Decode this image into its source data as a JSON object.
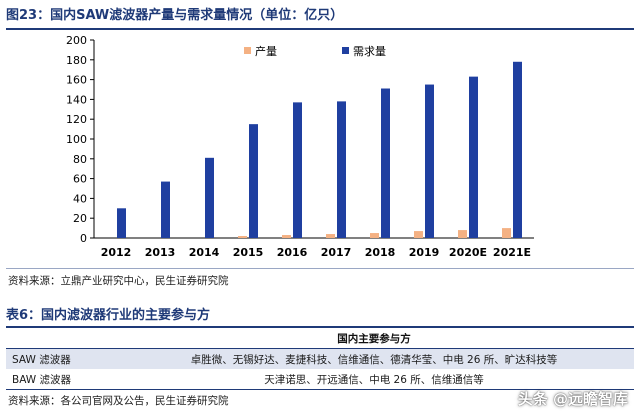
{
  "figure": {
    "title": "图23：国内SAW滤波器产量与需求量情况（单位：亿只）",
    "source": "资料来源：立鼎产业研究中心，民生证券研究院"
  },
  "chart_data": {
    "type": "bar",
    "categories": [
      "2012",
      "2013",
      "2014",
      "2015",
      "2016",
      "2017",
      "2018",
      "2019",
      "2020E",
      "2021E"
    ],
    "series": [
      {
        "name": "产量",
        "color": "#f4b183",
        "values": [
          0,
          0,
          0,
          2,
          3,
          4,
          5,
          7,
          8,
          10
        ]
      },
      {
        "name": "需求量",
        "color": "#1f3fa0",
        "values": [
          30,
          57,
          81,
          115,
          137,
          138,
          151,
          155,
          163,
          178
        ]
      }
    ],
    "title": "",
    "xlabel": "",
    "ylabel": "",
    "ylim": [
      0,
      200
    ],
    "yticks": [
      0,
      20,
      40,
      60,
      80,
      100,
      120,
      140,
      160,
      180,
      200
    ],
    "grid": false,
    "legend": "top-center"
  },
  "table": {
    "title": "表6：国内滤波器行业的主要参与方",
    "header": "国内主要参与方",
    "rows": [
      {
        "type": "SAW 滤波器",
        "companies": "卓胜微、无锡好达、麦捷科技、信维通信、德清华莹、中电 26 所、旷达科技等"
      },
      {
        "type": "BAW 滤波器",
        "companies": "天津诺思、开远通信、中电 26 所、信维通信等"
      }
    ],
    "source": "资料来源：各公司官网及公告，民生证券研究院"
  },
  "watermark": "头条 @远瞻智库"
}
